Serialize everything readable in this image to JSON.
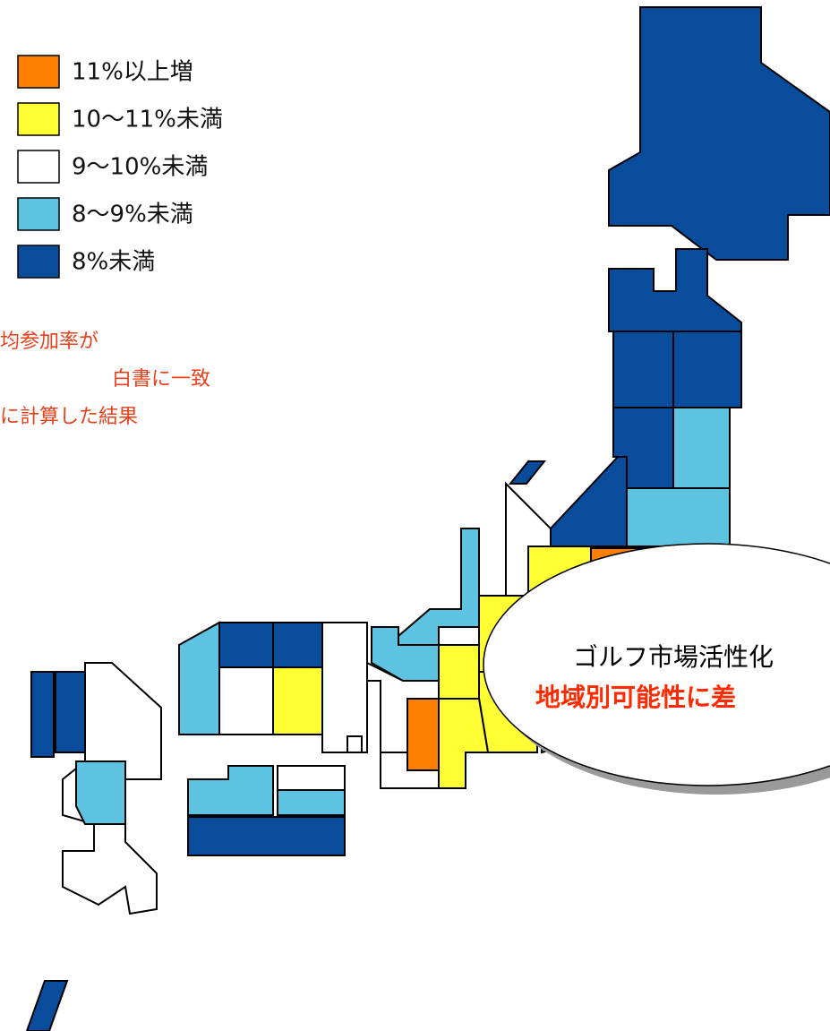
{
  "legend": {
    "items": [
      {
        "label": "11%以上増",
        "color": "#ff7f00"
      },
      {
        "label": "10〜11%未満",
        "color": "#ffff33"
      },
      {
        "label": "9〜10%未満",
        "color": "#ffffff"
      },
      {
        "label": "8〜9%未満",
        "color": "#5ec3e0"
      },
      {
        "label": "8%未満",
        "color": "#0a4c9c"
      }
    ]
  },
  "note": {
    "lines": [
      "均参加率が",
      "白書に一致",
      "に計算した結果"
    ],
    "color": "#e8401c"
  },
  "callout": {
    "lines": [
      "ゴルフ市場活性化",
      "地域別可能性に差"
    ],
    "colors": [
      "#000000",
      "#ff2a00"
    ]
  }
}
